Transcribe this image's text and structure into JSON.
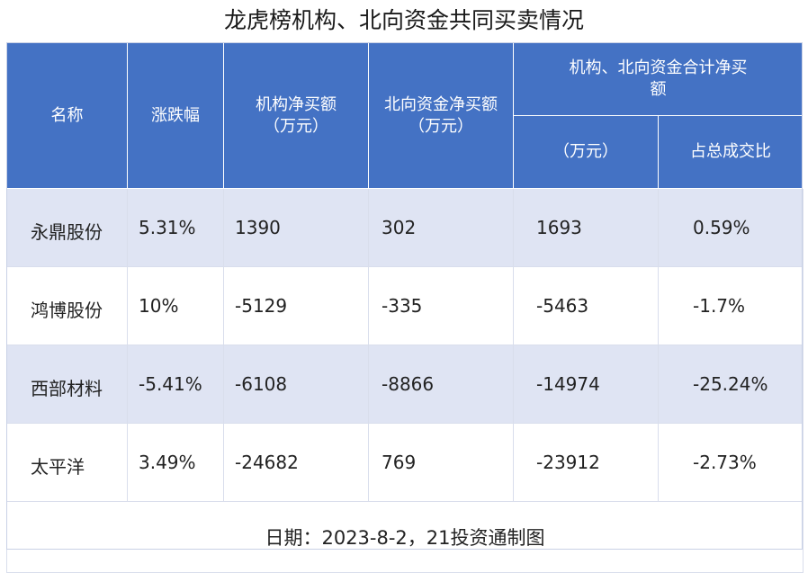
{
  "title": "龙虎榜机构、北向资金共同买卖情况",
  "header": {
    "col_name": "名称",
    "col_change": "涨跌幅",
    "col_inst": "机构净买额（万元）",
    "col_north": "北向资金净买额（万元）",
    "col_combined_group": "机构、北向资金合计净买额",
    "col_combined_amount": "（万元）",
    "col_combined_ratio": "占总成交比"
  },
  "rows": [
    {
      "name": "永鼎股份",
      "change": "5.31%",
      "inst": "1390",
      "north": "302",
      "combined": "1693",
      "ratio": "0.59%"
    },
    {
      "name": "鸿博股份",
      "change": "10%",
      "inst": "-5129",
      "north": "-335",
      "combined": "-5463",
      "ratio": "-1.7%"
    },
    {
      "name": "西部材料",
      "change": "-5.41%",
      "inst": "-6108",
      "north": "-8866",
      "combined": "-14974",
      "ratio": "-25.24%"
    },
    {
      "name": "太平洋",
      "change": "3.49%",
      "inst": "-24682",
      "north": "769",
      "combined": "-23912",
      "ratio": "-2.73%"
    }
  ],
  "footer": "日期：2023-8-2，21投资通制图",
  "colors": {
    "header_bg": "#4472c4",
    "row_alt_bg": "#dfe4f3",
    "row_plain_bg": "#ffffff"
  }
}
